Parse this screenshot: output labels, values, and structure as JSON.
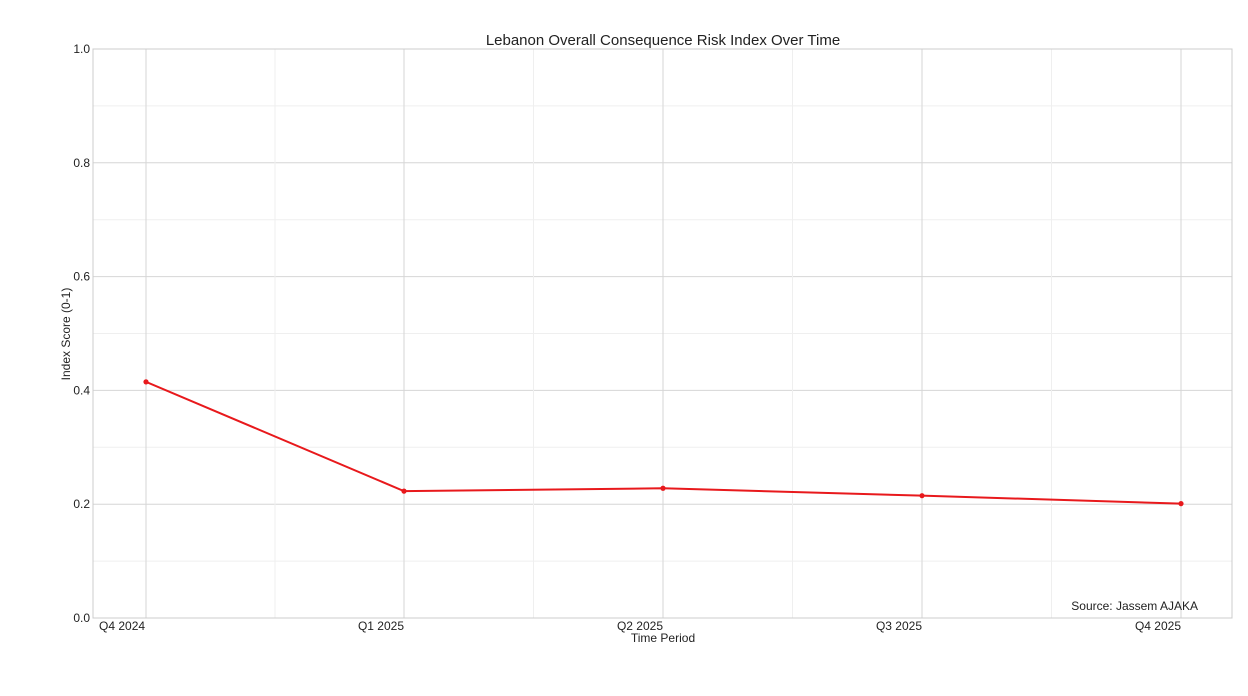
{
  "chart_data": {
    "type": "line",
    "title": "Lebanon Overall Consequence Risk Index Over Time",
    "xlabel": "Time Period",
    "ylabel": "Index Score (0-1)",
    "categories": [
      "Q4 2024",
      "Q1 2025",
      "Q2 2025",
      "Q3 2025",
      "Q4 2025"
    ],
    "series": [
      {
        "values": [
          0.415,
          0.223,
          0.228,
          0.215,
          0.201
        ]
      }
    ],
    "ylim": [
      0,
      1.0
    ],
    "yticks": [
      "0.0",
      "0.2",
      "0.4",
      "0.6",
      "0.8",
      "1.0"
    ],
    "grid": true,
    "line_color": "#e8191c",
    "annotation": "Source: Jassem AJAKA"
  }
}
